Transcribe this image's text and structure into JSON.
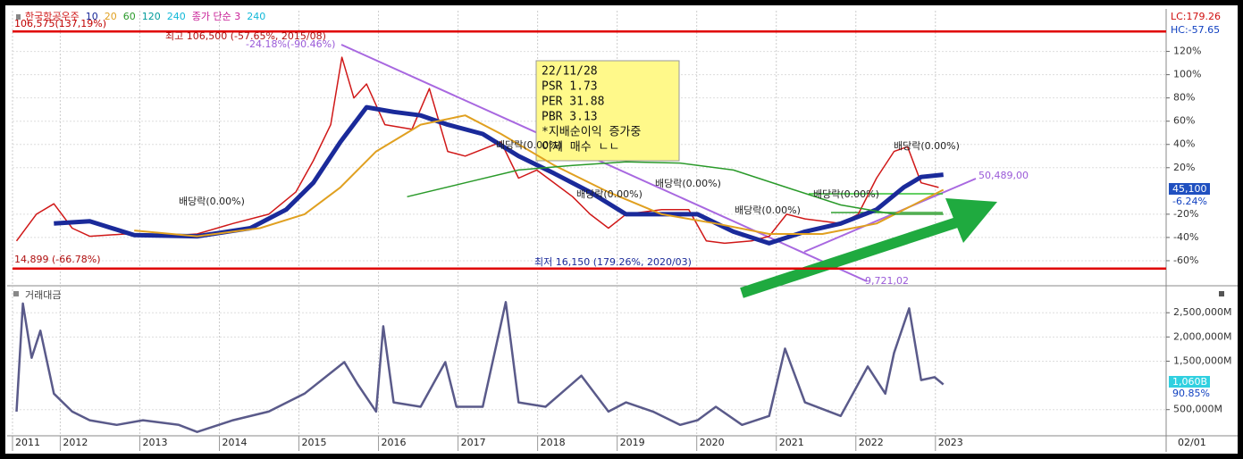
{
  "chart_data": [
    {
      "type": "line",
      "legend_extra": [
        {
          "text": "120",
          "color": "#009a9a"
        },
        {
          "text": "240",
          "color": "#10b8d8"
        },
        {
          "text": "종가 단순 3",
          "color": "#c81e96"
        },
        {
          "text": "240",
          "color": "#10b8d8"
        }
      ],
      "xlim": [
        2011.4,
        2025.9
      ],
      "ylim": [
        -80,
        155
      ],
      "yticks": [
        {
          "value": 120,
          "label": "120%"
        },
        {
          "value": 100,
          "label": "100%"
        },
        {
          "value": 80,
          "label": "80%"
        },
        {
          "value": 60,
          "label": "60%"
        },
        {
          "value": 40,
          "label": "40%"
        },
        {
          "value": 20,
          "label": "20%"
        },
        {
          "value": -20,
          "label": "-20%"
        },
        {
          "value": -40,
          "label": "-40%"
        },
        {
          "value": -60,
          "label": "-60%"
        }
      ],
      "grid": true,
      "reference_lines": [
        {
          "value": 137.19,
          "color": "#e00000"
        },
        {
          "value": -66.78,
          "color": "#e00000"
        }
      ],
      "series": [
        {
          "name": "한국항공우주",
          "color": "#d01818",
          "width": 1.5,
          "x": [
            2011.45,
            2011.7,
            2011.92,
            2012.15,
            2012.37,
            2012.82,
            2013.27,
            2013.72,
            2014.17,
            2014.62,
            2014.96,
            2015.18,
            2015.4,
            2015.54,
            2015.69,
            2015.85,
            2016.08,
            2016.42,
            2016.64,
            2016.87,
            2017.09,
            2017.54,
            2017.76,
            2017.99,
            2018.44,
            2018.66,
            2018.89,
            2019.11,
            2019.56,
            2019.9,
            2020.12,
            2020.35,
            2020.69,
            2020.91,
            2021.13,
            2021.36,
            2021.81,
            2022.03,
            2022.26,
            2022.48,
            2022.65,
            2022.82,
            2023.04
          ],
          "values": [
            -43,
            -20,
            -11,
            -32,
            -39,
            -37,
            -39,
            -37,
            -28,
            -20,
            -1,
            26,
            57,
            115,
            80,
            92,
            57,
            53,
            88,
            34,
            30,
            42,
            11,
            18,
            -5,
            -20,
            -32,
            -20,
            -16,
            -16,
            -43,
            -45,
            -43,
            -39,
            -20,
            -24,
            -28,
            -20,
            11,
            34,
            38,
            7,
            3
          ]
        },
        {
          "name": "10",
          "color": "#1a2a9a",
          "width": 5,
          "x": [
            2011.92,
            2012.37,
            2012.93,
            2013.72,
            2014.39,
            2014.84,
            2015.18,
            2015.52,
            2015.85,
            2016.19,
            2016.53,
            2016.87,
            2017.31,
            2017.76,
            2018.21,
            2018.66,
            2019.11,
            2019.56,
            2020.01,
            2020.46,
            2020.91,
            2021.36,
            2021.81,
            2022.26,
            2022.6,
            2022.82,
            2023.1
          ],
          "values": [
            -28,
            -26,
            -38,
            -39,
            -32,
            -16,
            7,
            42,
            72,
            68,
            65,
            57,
            49,
            30,
            15,
            -1,
            -20,
            -20,
            -20,
            -35,
            -45,
            -35,
            -28,
            -16,
            3,
            12,
            14
          ]
        },
        {
          "name": "20",
          "color": "#e0a020",
          "width": 2,
          "x": [
            2012.93,
            2013.72,
            2014.51,
            2015.07,
            2015.52,
            2015.97,
            2016.53,
            2017.09,
            2017.54,
            2018.21,
            2018.89,
            2019.56,
            2020.24,
            2020.91,
            2021.58,
            2022.26,
            2023.1
          ],
          "values": [
            -34,
            -39,
            -32,
            -20,
            3,
            34,
            57,
            65,
            49,
            22,
            -1,
            -20,
            -28,
            -37,
            -37,
            -28,
            1
          ]
        },
        {
          "name": "60",
          "color": "#2a9a2a",
          "width": 1.5,
          "x": [
            2016.36,
            2017.09,
            2017.76,
            2018.44,
            2019.11,
            2019.79,
            2020.46,
            2021.13,
            2021.81,
            2022.48,
            2023.1
          ],
          "values": [
            -5,
            7,
            18,
            22,
            25,
            24,
            18,
            3,
            -12,
            -20,
            -20
          ]
        }
      ],
      "annotations": [
        "106,575(137,19%)",
        "최고 106,500 (-57.65%, 2015/08)",
        "-24.18%(-90.46%)",
        "LC:179.26",
        "HC:-57.65",
        "45,100",
        "-6.24%",
        "50,489,00",
        "9,721,02",
        "14,899 (-66.78%)",
        "최저 16,150 (179.26%, 2020/03)",
        "배당락(0.00%)",
        "배당락(0.00%)",
        "배당락(0.00%)",
        "배당락(0.00%)",
        "배당락(0.00%)",
        "배당락(0.00%)",
        "배당락(0.00%)"
      ],
      "tooltip": [
        "22/11/28",
        "PSR 1.73",
        "PER 31.88",
        "PBR 3.13",
        "*지배순이익 증가중",
        "이제 매수 ㄴㄴ"
      ]
    },
    {
      "type": "line",
      "title": "거래대금",
      "xlim": [
        2011.4,
        2025.9
      ],
      "ylim": [
        -40000,
        3020000
      ],
      "xticks": [
        {
          "value": 2011.4,
          "label": "2011"
        },
        2012,
        2013,
        2014,
        2015,
        2016,
        2017,
        2018,
        2019,
        2020,
        2021,
        2022,
        2023
      ],
      "yticks": [
        {
          "value": 2500000,
          "label": "2,500,000M"
        },
        {
          "value": 2000000,
          "label": "2,000,000M"
        },
        {
          "value": 1500000,
          "label": "1,500,000M"
        },
        {
          "value": 500000,
          "label": "500,000M"
        }
      ],
      "grid": true,
      "series": [
        {
          "color": "#5a5a8a",
          "width": 2.5,
          "x": [
            2011.45,
            2011.53,
            2011.64,
            2011.75,
            2011.92,
            2012.15,
            2012.37,
            2012.71,
            2013.04,
            2013.49,
            2013.72,
            2014.17,
            2014.62,
            2015.07,
            2015.57,
            2015.74,
            2015.97,
            2016.06,
            2016.19,
            2016.53,
            2016.84,
            2016.98,
            2017.31,
            2017.6,
            2017.76,
            2018.1,
            2018.55,
            2018.89,
            2019.11,
            2019.45,
            2019.79,
            2020.01,
            2020.24,
            2020.57,
            2020.91,
            2021.11,
            2021.36,
            2021.81,
            2022.15,
            2022.37,
            2022.48,
            2022.67,
            2022.82,
            2022.99,
            2023.1
          ],
          "values": [
            460000,
            2690000,
            1570000,
            2130000,
            830000,
            460000,
            280000,
            185000,
            280000,
            185000,
            40000,
            280000,
            460000,
            830000,
            1480000,
            1020000,
            460000,
            2220000,
            650000,
            560000,
            1480000,
            560000,
            560000,
            2720000,
            650000,
            560000,
            1200000,
            460000,
            650000,
            460000,
            185000,
            280000,
            560000,
            185000,
            370000,
            1760000,
            650000,
            370000,
            1390000,
            830000,
            1670000,
            2590000,
            1110000,
            1170000,
            1020000
          ]
        }
      ],
      "annotations": [
        "1,060B",
        "90.85%",
        "02/01"
      ]
    }
  ]
}
